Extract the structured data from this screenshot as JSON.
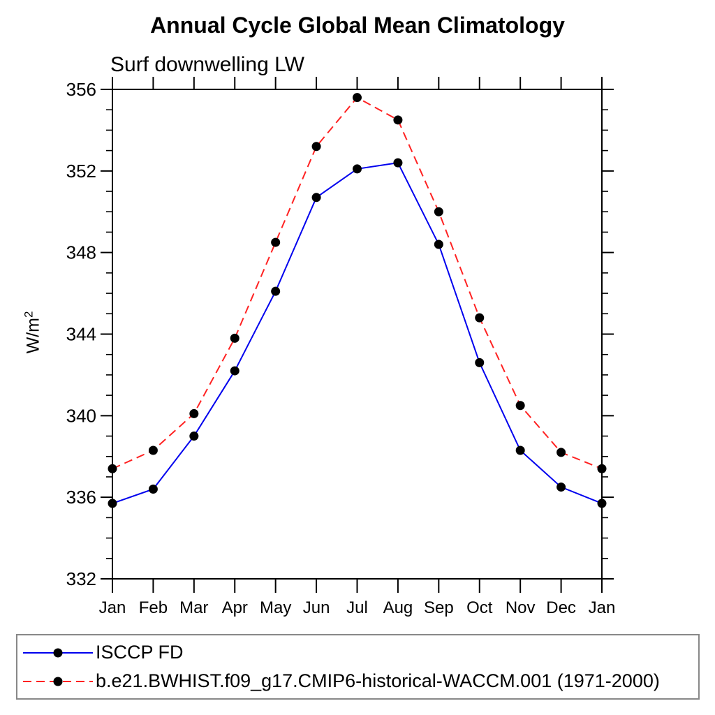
{
  "title": "Annual Cycle Global Mean Climatology",
  "subtitle": "Surf downwelling LW",
  "chart_data": {
    "type": "line",
    "title": "Annual Cycle Global Mean Climatology",
    "subtitle": "Surf downwelling LW",
    "ylabel_base": "W/m",
    "ylabel_exp": "2",
    "x_tick_labels": [
      "Jan",
      "Feb",
      "Mar",
      "Apr",
      "May",
      "Jun",
      "Jul",
      "Aug",
      "Sep",
      "Oct",
      "Nov",
      "Dec",
      "Jan"
    ],
    "ylim": [
      332,
      356
    ],
    "y_major_step": 4,
    "y_minor_step": 1,
    "grid": false,
    "legend_position": "bottom",
    "axis_color": "#000000",
    "marker_color": "#000000",
    "series": [
      {
        "name": "ISCCP FD",
        "color": "#0000ee",
        "dash": "solid",
        "marker": "circle",
        "values": [
          335.7,
          336.4,
          339.0,
          342.2,
          346.1,
          350.7,
          352.1,
          352.4,
          348.4,
          342.6,
          338.3,
          336.5,
          335.7
        ]
      },
      {
        "name": "b.e21.BWHIST.f09_g17.CMIP6-historical-WACCM.001 (1971-2000)",
        "color": "#ff2222",
        "dash": "dashed",
        "marker": "circle",
        "values": [
          337.4,
          338.3,
          340.1,
          343.8,
          348.5,
          353.2,
          355.6,
          354.5,
          350.0,
          344.8,
          340.5,
          338.2,
          337.4
        ]
      }
    ]
  }
}
